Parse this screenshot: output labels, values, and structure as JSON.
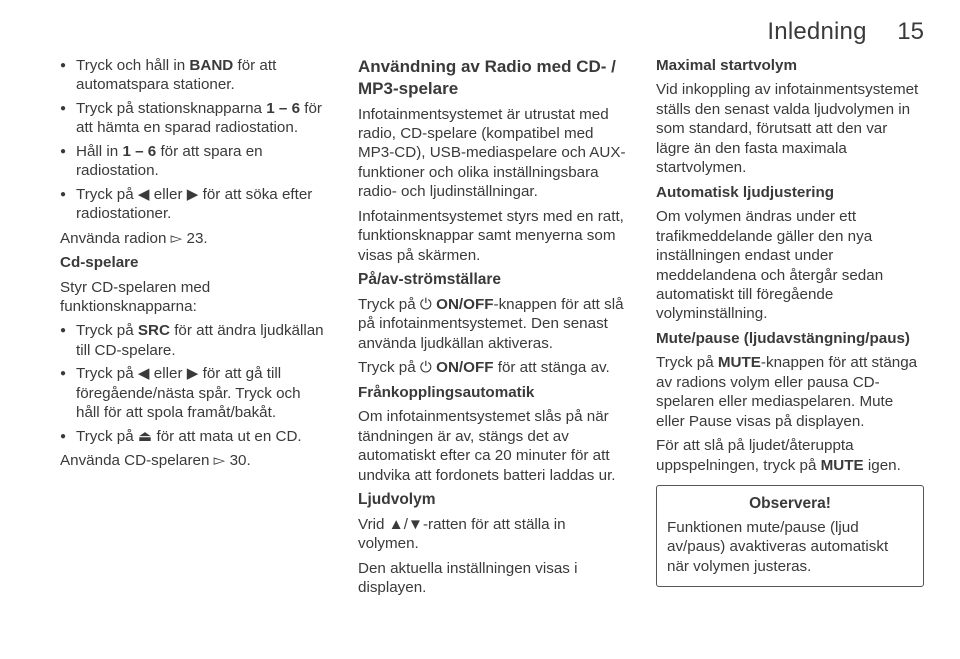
{
  "header": {
    "title": "Inledning",
    "page": "15"
  },
  "col1": {
    "bullets1": [
      {
        "pre": "Tryck och håll in ",
        "bold": "BAND",
        "post": " för att automatspara stationer."
      },
      {
        "pre": "Tryck på stationsknapparna ",
        "bold": "1 – 6",
        "post": " för att hämta en sparad radiostation."
      },
      {
        "pre": "Håll in ",
        "bold": "1 – 6",
        "post": " för att spara en radiostation."
      },
      {
        "pre": "Tryck på ",
        "sym": "◀",
        "mid": " eller ",
        "sym2": "▶",
        "post": " för att söka efter radiostationer."
      }
    ],
    "p1a": "Använda radion ",
    "p1sym": "▻",
    "p1b": " 23.",
    "h4a": "Cd-spelare",
    "p2": "Styr CD-spelaren med funktionsknapparna:",
    "bullets2": [
      {
        "pre": "Tryck på ",
        "bold": "SRC",
        "post": " för att ändra ljudkällan till CD-spelare."
      },
      {
        "pre": "Tryck på ",
        "sym": "◀",
        "mid": " eller ",
        "sym2": "▶",
        "post": " för att gå till föregående/nästa spår. Tryck och håll för att spola framåt/bakåt."
      },
      {
        "pre": "Tryck på ",
        "sym": "⏏",
        "post": " för att mata ut en CD."
      }
    ],
    "p3a": "Använda CD-spelaren ",
    "p3sym": "▻",
    "p3b": " 30."
  },
  "col2": {
    "h2": "Användning av Radio med CD- / MP3-spelare",
    "p1": "Infotainmentsystemet är utrustat med radio, CD-spelare (kompatibel med MP3-CD), USB-mediaspelare och AUX-funktioner och olika inställningsbara radio- och ljudinställningar.",
    "p2": "Infotainmentsystemet styrs med en ratt, funktionsknappar samt menyerna som visas på skärmen.",
    "h3a": "På/av-strömställare",
    "p3a": "Tryck på ",
    "p3sym": "⏻",
    "p3mid": " ",
    "p3bold": "ON/OFF",
    "p3b": "-knappen för att slå på infotainmentsystemet. Den senast använda ljudkällan aktiveras.",
    "p4a": "Tryck på ",
    "p4sym": "⏻",
    "p4mid": " ",
    "p4bold": "ON/OFF",
    "p4b": " för att stänga av.",
    "h4a": "Frånkopplingsautomatik",
    "p5": "Om infotainmentsystemet slås på när tändningen är av, stängs det av automatiskt efter ca 20 minuter för att undvika att fordonets batteri laddas ur.",
    "h3b": "Ljudvolym",
    "p6a": "Vrid ",
    "p6sym": "▲/▼",
    "p6b": "-ratten för att ställa in volymen.",
    "p7": "Den aktuella inställningen visas i displayen."
  },
  "col3": {
    "h4a": "Maximal startvolym",
    "p1": "Vid inkoppling av infotainmentsystemet ställs den senast valda ljudvolymen in som standard, förutsatt att den var lägre än den fasta maximala startvolymen.",
    "h4b": "Automatisk ljudjustering",
    "p2": "Om volymen ändras under ett trafikmeddelande gäller den nya inställningen endast under meddelandena och återgår sedan automatiskt till föregående volyminställning.",
    "h4c": "Mute/pause (ljudavstängning/paus)",
    "p3a": "Tryck på ",
    "p3bold": "MUTE",
    "p3b": "-knappen för att stänga av radions volym eller pausa CD-spelaren eller mediaspelaren. Mute eller Pause visas på displayen.",
    "p4a": "För att slå på ljudet/återuppta uppspelningen, tryck på ",
    "p4bold": "MUTE",
    "p4b": " igen.",
    "noticeTitle": "Observera!",
    "noticeBody": "Funktionen mute/pause (ljud av/paus) avaktiveras automatiskt när volymen justeras."
  }
}
